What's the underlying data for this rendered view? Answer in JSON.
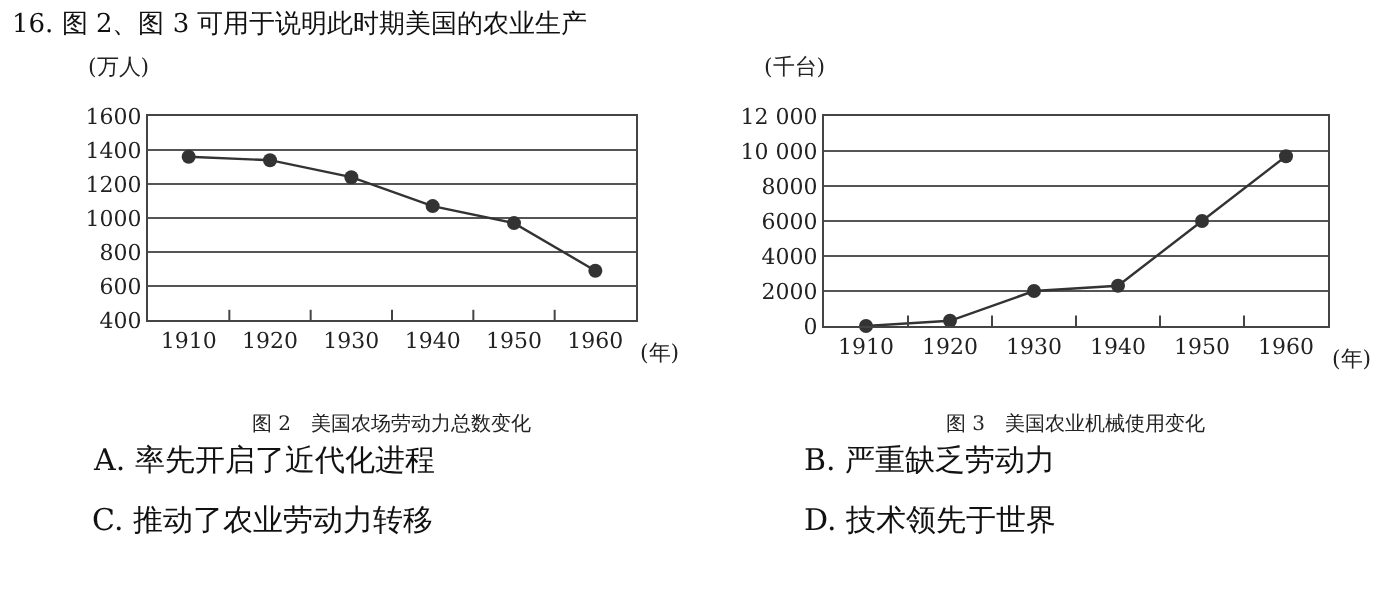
{
  "chart_data": [
    {
      "type": "line",
      "title": "图 2　美国农场劳动力总数变化",
      "xlabel": "(年)",
      "ylabel": "(万人)",
      "categories": [
        "1910",
        "1920",
        "1930",
        "1940",
        "1950",
        "1960"
      ],
      "series": [
        {
          "color": "#333333",
          "values": [
            1360,
            1340,
            1240,
            1070,
            970,
            690
          ]
        }
      ],
      "ylim": [
        400,
        1600
      ],
      "yticks": [
        400,
        600,
        800,
        1000,
        1200,
        1400,
        1600
      ],
      "grid": "y",
      "marker": "circle",
      "line_style": "solid",
      "annotations": [
        "16. 图 2、图 3 可用于说明此时期美国的农业生产",
        "A. 率先开启了近代化进程",
        "C. 推动了农业劳动力转移"
      ]
    },
    {
      "type": "line",
      "title": "图 3　美国农业机械使用变化",
      "xlabel": "(年)",
      "ylabel": "(千台)",
      "categories": [
        "1910",
        "1920",
        "1930",
        "1940",
        "1950",
        "1960"
      ],
      "series": [
        {
          "color": "#333333",
          "values": [
            0,
            300,
            2000,
            2300,
            6000,
            9700
          ]
        }
      ],
      "ylim": [
        0,
        12000
      ],
      "yticks": [
        0,
        2000,
        4000,
        6000,
        8000,
        {
          "value": 10000,
          "label": "10 000"
        },
        {
          "value": 12000,
          "label": "12 000"
        }
      ],
      "grid": "y",
      "marker": "circle",
      "line_style": "solid",
      "annotations": [
        "B. 严重缺乏劳动力",
        "D. 技术领先于世界"
      ]
    }
  ]
}
